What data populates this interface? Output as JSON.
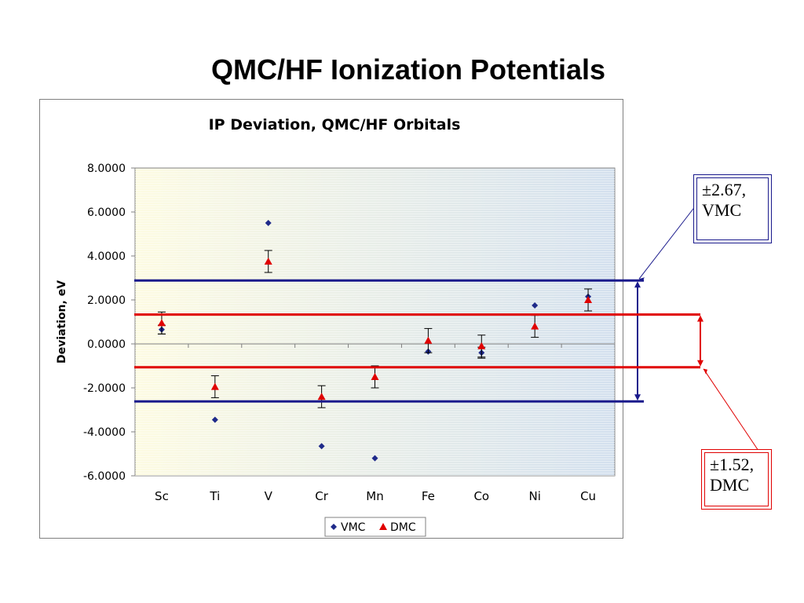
{
  "slide": {
    "title": "QMC/HF Ionization Potentials"
  },
  "callouts": {
    "vmc": {
      "line1": "±2.67,",
      "line2": "VMC",
      "color": "#1a1a8c"
    },
    "dmc": {
      "line1": "±1.52,",
      "line2": "DMC",
      "color": "#e00000"
    }
  },
  "chart_data": {
    "type": "scatter",
    "title": "IP Deviation, QMC/HF Orbitals",
    "xlabel": "",
    "ylabel": "Deviation, eV",
    "categories": [
      "Sc",
      "Ti",
      "V",
      "Cr",
      "Mn",
      "Fe",
      "Co",
      "Ni",
      "Cu"
    ],
    "ylim": [
      -6,
      8
    ],
    "yticks": [
      8,
      6,
      4,
      2,
      0,
      -2,
      -4,
      -6
    ],
    "ytick_labels": [
      "8.0000",
      "6.0000",
      "4.0000",
      "2.0000",
      "0.0000",
      "-2.0000",
      "-4.0000",
      "-6.0000"
    ],
    "grid": false,
    "legend_position": "bottom",
    "series": [
      {
        "name": "VMC",
        "marker": "diamond",
        "color": "#1f2a8a",
        "values": [
          0.65,
          -3.45,
          5.5,
          -4.65,
          -5.2,
          -0.35,
          -0.4,
          1.75,
          2.15
        ],
        "errors": [
          0.2,
          0,
          0,
          0,
          0,
          0,
          0.25,
          0,
          0
        ]
      },
      {
        "name": "DMC",
        "marker": "triangle",
        "color": "#e00000",
        "values": [
          0.95,
          -1.95,
          3.75,
          -2.4,
          -1.5,
          0.15,
          -0.1,
          0.8,
          2.0
        ],
        "errors": [
          0.5,
          0.5,
          0.5,
          0.5,
          0.5,
          0.55,
          0.5,
          0.5,
          0.5
        ]
      }
    ],
    "reference_bands": [
      {
        "name": "VMC",
        "upper": 2.85,
        "lower": -2.65,
        "color": "#1a1a8c"
      },
      {
        "name": "DMC",
        "upper": 1.3,
        "lower": -1.1,
        "color": "#e00000"
      }
    ]
  }
}
